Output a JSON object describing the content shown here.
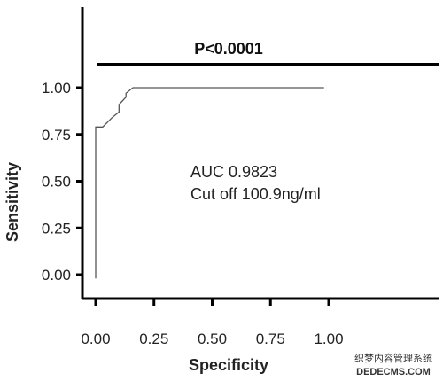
{
  "chart_data": {
    "type": "line",
    "title": "",
    "xlabel": "Specificity",
    "ylabel": "Sensitivity",
    "xlim": [
      0,
      1.15
    ],
    "ylim": [
      -0.05,
      1.25
    ],
    "xticks": [
      0.0,
      0.25,
      0.5,
      0.75,
      1.0
    ],
    "xtick_labels": [
      "0.00",
      "0.25",
      "0.50",
      "0.75",
      "1.00"
    ],
    "yticks": [
      0.0,
      0.25,
      0.5,
      0.75,
      1.0
    ],
    "ytick_labels": [
      "0.00",
      "0.25",
      "0.50",
      "0.75",
      "1.00"
    ],
    "grid": false,
    "series": [
      {
        "values": [
          {
            "x": 0.0,
            "y": -0.02
          },
          {
            "x": 0.0,
            "y": 0.79
          },
          {
            "x": 0.03,
            "y": 0.79
          },
          {
            "x": 0.07,
            "y": 0.84
          },
          {
            "x": 0.1,
            "y": 0.87
          },
          {
            "x": 0.1,
            "y": 0.91
          },
          {
            "x": 0.13,
            "y": 0.95
          },
          {
            "x": 0.13,
            "y": 0.97
          },
          {
            "x": 0.16,
            "y": 1.0
          },
          {
            "x": 0.98,
            "y": 1.0
          }
        ]
      }
    ],
    "annotations": {
      "auc": "AUC 0.9823",
      "cutoff": "Cut off 100.9ng/ml",
      "p_value": "P<0.0001"
    }
  },
  "watermark": {
    "line1": "织梦内容管理系统",
    "line2": "DEDECMS.COM"
  }
}
